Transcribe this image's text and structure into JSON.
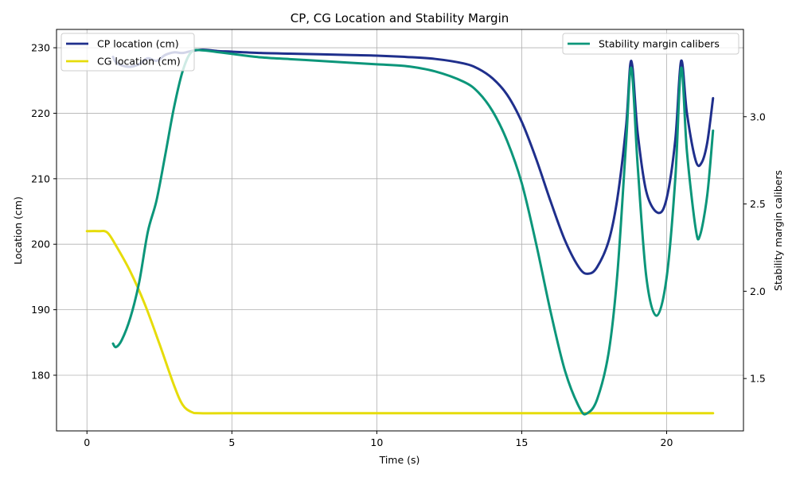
{
  "chart_data": {
    "type": "line",
    "title": "CP, CG Location and Stability Margin",
    "xlabel": "Time (s)",
    "ylabel": "Location (cm)",
    "y2label": "Stability margin calibers",
    "xlim": [
      -1.05,
      22.65
    ],
    "ylim": [
      171.5,
      232.8
    ],
    "y2lim": [
      1.2,
      3.5
    ],
    "xticks": [
      0,
      5,
      10,
      15,
      20
    ],
    "yticks": [
      180,
      190,
      200,
      210,
      220,
      230
    ],
    "y2ticks": [
      1.5,
      2.0,
      2.5,
      3.0
    ],
    "xtick_labels": [
      "0",
      "5",
      "10",
      "15",
      "20"
    ],
    "ytick_labels": [
      "180",
      "190",
      "200",
      "210",
      "220",
      "230"
    ],
    "y2tick_labels": [
      "1.5",
      "2.0",
      "2.5",
      "3.0"
    ],
    "grid": true,
    "series": [
      {
        "name": "CP location (cm)",
        "axis": "left",
        "color": "#1f2f8c",
        "points": [
          [
            0.9,
            228.6
          ],
          [
            1.0,
            227.8
          ],
          [
            1.2,
            227.3
          ],
          [
            1.5,
            227.1
          ],
          [
            1.8,
            227.5
          ],
          [
            2.1,
            228.4
          ],
          [
            2.4,
            228.0
          ],
          [
            2.7,
            228.9
          ],
          [
            3.0,
            229.3
          ],
          [
            3.3,
            229.2
          ],
          [
            3.6,
            229.5
          ],
          [
            4.0,
            229.7
          ],
          [
            4.5,
            229.5
          ],
          [
            5.0,
            229.4
          ],
          [
            6.0,
            229.2
          ],
          [
            7.0,
            229.1
          ],
          [
            8.0,
            229.0
          ],
          [
            9.0,
            228.9
          ],
          [
            10.0,
            228.8
          ],
          [
            11.0,
            228.6
          ],
          [
            12.0,
            228.3
          ],
          [
            13.0,
            227.6
          ],
          [
            13.5,
            226.8
          ],
          [
            14.0,
            225.3
          ],
          [
            14.5,
            222.8
          ],
          [
            15.0,
            218.7
          ],
          [
            15.5,
            213.0
          ],
          [
            16.0,
            206.5
          ],
          [
            16.5,
            200.5
          ],
          [
            17.0,
            196.3
          ],
          [
            17.3,
            195.5
          ],
          [
            17.6,
            196.5
          ],
          [
            18.0,
            200.5
          ],
          [
            18.3,
            207.0
          ],
          [
            18.6,
            218.0
          ],
          [
            18.78,
            228.0
          ],
          [
            19.0,
            217.0
          ],
          [
            19.3,
            208.0
          ],
          [
            19.7,
            204.8
          ],
          [
            20.0,
            207.0
          ],
          [
            20.3,
            216.0
          ],
          [
            20.5,
            228.0
          ],
          [
            20.7,
            220.0
          ],
          [
            21.0,
            212.8
          ],
          [
            21.2,
            212.4
          ],
          [
            21.4,
            215.5
          ],
          [
            21.6,
            222.3
          ]
        ]
      },
      {
        "name": "CG location (cm)",
        "axis": "left",
        "color": "#e6dc0a",
        "points": [
          [
            0.0,
            202.0
          ],
          [
            0.4,
            202.0
          ],
          [
            0.7,
            201.8
          ],
          [
            1.0,
            199.8
          ],
          [
            1.5,
            195.8
          ],
          [
            2.0,
            190.8
          ],
          [
            2.5,
            184.8
          ],
          [
            3.0,
            178.5
          ],
          [
            3.3,
            175.5
          ],
          [
            3.6,
            174.4
          ],
          [
            3.9,
            174.2
          ],
          [
            5.0,
            174.2
          ],
          [
            10.0,
            174.2
          ],
          [
            15.0,
            174.2
          ],
          [
            20.0,
            174.2
          ],
          [
            21.6,
            174.2
          ]
        ]
      },
      {
        "name": "Stability margin calibers",
        "axis": "right",
        "color": "#0c967a",
        "points": [
          [
            0.9,
            1.7
          ],
          [
            1.0,
            1.68
          ],
          [
            1.2,
            1.72
          ],
          [
            1.5,
            1.85
          ],
          [
            1.8,
            2.05
          ],
          [
            2.1,
            2.34
          ],
          [
            2.4,
            2.52
          ],
          [
            2.7,
            2.78
          ],
          [
            3.0,
            3.05
          ],
          [
            3.3,
            3.26
          ],
          [
            3.6,
            3.37
          ],
          [
            4.0,
            3.38
          ],
          [
            4.5,
            3.37
          ],
          [
            5.0,
            3.36
          ],
          [
            6.0,
            3.34
          ],
          [
            7.0,
            3.33
          ],
          [
            8.0,
            3.32
          ],
          [
            9.0,
            3.31
          ],
          [
            10.0,
            3.3
          ],
          [
            11.0,
            3.29
          ],
          [
            12.0,
            3.26
          ],
          [
            13.0,
            3.2
          ],
          [
            13.5,
            3.14
          ],
          [
            14.0,
            3.03
          ],
          [
            14.5,
            2.86
          ],
          [
            15.0,
            2.62
          ],
          [
            15.5,
            2.27
          ],
          [
            16.0,
            1.88
          ],
          [
            16.5,
            1.54
          ],
          [
            17.0,
            1.33
          ],
          [
            17.25,
            1.3
          ],
          [
            17.6,
            1.38
          ],
          [
            18.0,
            1.65
          ],
          [
            18.3,
            2.1
          ],
          [
            18.6,
            2.85
          ],
          [
            18.78,
            3.28
          ],
          [
            19.0,
            2.72
          ],
          [
            19.3,
            2.08
          ],
          [
            19.65,
            1.86
          ],
          [
            20.0,
            2.08
          ],
          [
            20.3,
            2.65
          ],
          [
            20.5,
            3.28
          ],
          [
            20.7,
            2.8
          ],
          [
            21.0,
            2.36
          ],
          [
            21.15,
            2.32
          ],
          [
            21.4,
            2.55
          ],
          [
            21.6,
            2.92
          ]
        ]
      }
    ],
    "legend_left_entries": [
      "CP location (cm)",
      "CG location (cm)"
    ],
    "legend_right_entries": [
      "Stability margin calibers"
    ],
    "legend_left_placement": "upper-left",
    "legend_right_placement": "upper-right"
  }
}
